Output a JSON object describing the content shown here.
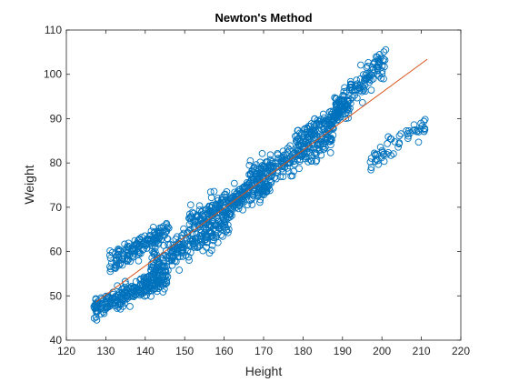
{
  "chart_data": {
    "type": "scatter",
    "title": "Newton's Method",
    "xlabel": "Height",
    "ylabel": "Weight",
    "xlim": [
      120,
      220
    ],
    "ylim": [
      40,
      110
    ],
    "xticks": [
      120,
      130,
      140,
      150,
      160,
      170,
      180,
      190,
      200,
      210,
      220
    ],
    "yticks": [
      40,
      50,
      60,
      70,
      80,
      90,
      100,
      110
    ],
    "grid": false,
    "legend": "none",
    "colors": {
      "scatter": "#0072BD",
      "fit_line": "#D95319",
      "axes": "#262626"
    },
    "fit_line": {
      "x": [
        127.5,
        211.5
      ],
      "y": [
        48.6,
        103.4
      ]
    },
    "clusters": [
      {
        "x_range": [
          127,
          146
        ],
        "y_range": [
          44.5,
          57
        ],
        "count": 260
      },
      {
        "x_range": [
          131,
          146
        ],
        "y_range": [
          54,
          68
        ],
        "count": 160
      },
      {
        "x_range": [
          141,
          162
        ],
        "y_range": [
          52,
          72
        ],
        "count": 230
      },
      {
        "x_range": [
          151,
          172
        ],
        "y_range": [
          63,
          79
        ],
        "count": 260
      },
      {
        "x_range": [
          166,
          188
        ],
        "y_range": [
          72,
          90
        ],
        "count": 240
      },
      {
        "x_range": [
          178,
          192
        ],
        "y_range": [
          82,
          96
        ],
        "count": 150
      },
      {
        "x_range": [
          188,
          201
        ],
        "y_range": [
          88,
          108
        ],
        "count": 130
      },
      {
        "x_range": [
          197,
          211
        ],
        "y_range": [
          77,
          92
        ],
        "count": 55
      }
    ]
  }
}
